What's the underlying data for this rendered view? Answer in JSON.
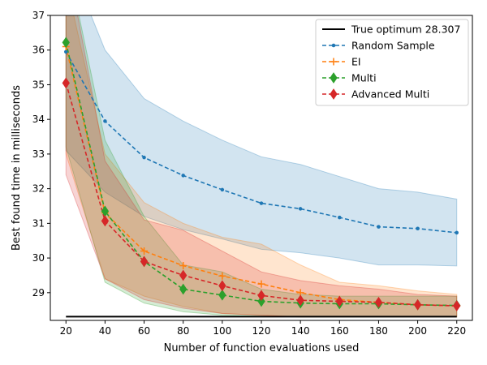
{
  "chart_data": {
    "type": "line",
    "title": "",
    "xlabel": "Number of function evaluations used",
    "ylabel": "Best found time in milliseconds",
    "xlim": [
      12,
      228
    ],
    "ylim": [
      28.2,
      37
    ],
    "x_ticks": [
      20,
      40,
      60,
      80,
      100,
      120,
      140,
      160,
      180,
      200,
      220
    ],
    "y_ticks": [
      29,
      30,
      31,
      32,
      33,
      34,
      35,
      36,
      37
    ],
    "grid": false,
    "legend_position": "top-right",
    "x": [
      20,
      40,
      60,
      80,
      100,
      120,
      140,
      160,
      180,
      200,
      220
    ],
    "reference_line": {
      "name": "True optimum 28.307",
      "value": 28.307,
      "x_range": [
        20,
        220
      ],
      "color": "#000000"
    },
    "series": [
      {
        "name": "Random Sample",
        "color": "#1f77b4",
        "marker": "circle",
        "values": [
          35.95,
          33.95,
          32.9,
          32.38,
          31.97,
          31.58,
          31.42,
          31.17,
          30.9,
          30.85,
          30.73
        ],
        "band_upper": [
          38.8,
          36.0,
          34.6,
          33.95,
          33.4,
          32.92,
          32.7,
          32.35,
          32.0,
          31.9,
          31.7
        ],
        "band_lower": [
          33.1,
          31.9,
          31.2,
          30.82,
          30.55,
          30.25,
          30.15,
          30.0,
          29.8,
          29.8,
          29.77
        ]
      },
      {
        "name": "EI",
        "color": "#ff7f0e",
        "marker": "plus",
        "values": [
          36.1,
          31.3,
          30.2,
          29.78,
          29.48,
          29.25,
          29.0,
          28.8,
          28.72,
          28.65,
          28.62
        ],
        "band_upper": [
          38.0,
          33.0,
          31.6,
          31.0,
          30.6,
          30.4,
          29.8,
          29.3,
          29.2,
          29.05,
          28.95
        ],
        "band_lower": [
          33.0,
          29.4,
          28.9,
          28.6,
          28.4,
          28.35,
          28.3,
          28.3,
          28.3,
          28.3,
          28.3
        ]
      },
      {
        "name": "Multi",
        "color": "#2ca02c",
        "marker": "diamond",
        "values": [
          36.22,
          31.35,
          29.9,
          29.1,
          28.93,
          28.75,
          28.7,
          28.68,
          28.68,
          28.65,
          28.63
        ],
        "band_upper": [
          38.8,
          33.4,
          31.2,
          29.8,
          29.6,
          29.1,
          28.95,
          28.9,
          28.9,
          28.9,
          28.9
        ],
        "band_lower": [
          33.2,
          29.3,
          28.7,
          28.45,
          28.35,
          28.32,
          28.3,
          28.3,
          28.3,
          28.3,
          28.3
        ]
      },
      {
        "name": "Advanced Multi",
        "color": "#d62728",
        "marker": "diamond",
        "values": [
          35.05,
          31.07,
          29.9,
          29.5,
          29.2,
          28.92,
          28.78,
          28.75,
          28.72,
          28.65,
          28.62
        ],
        "band_upper": [
          38.8,
          32.8,
          31.1,
          30.8,
          30.2,
          29.6,
          29.35,
          29.2,
          29.1,
          28.95,
          28.9
        ],
        "band_lower": [
          32.4,
          29.4,
          28.8,
          28.55,
          28.4,
          28.35,
          28.3,
          28.3,
          28.3,
          28.3,
          28.3
        ]
      }
    ]
  }
}
